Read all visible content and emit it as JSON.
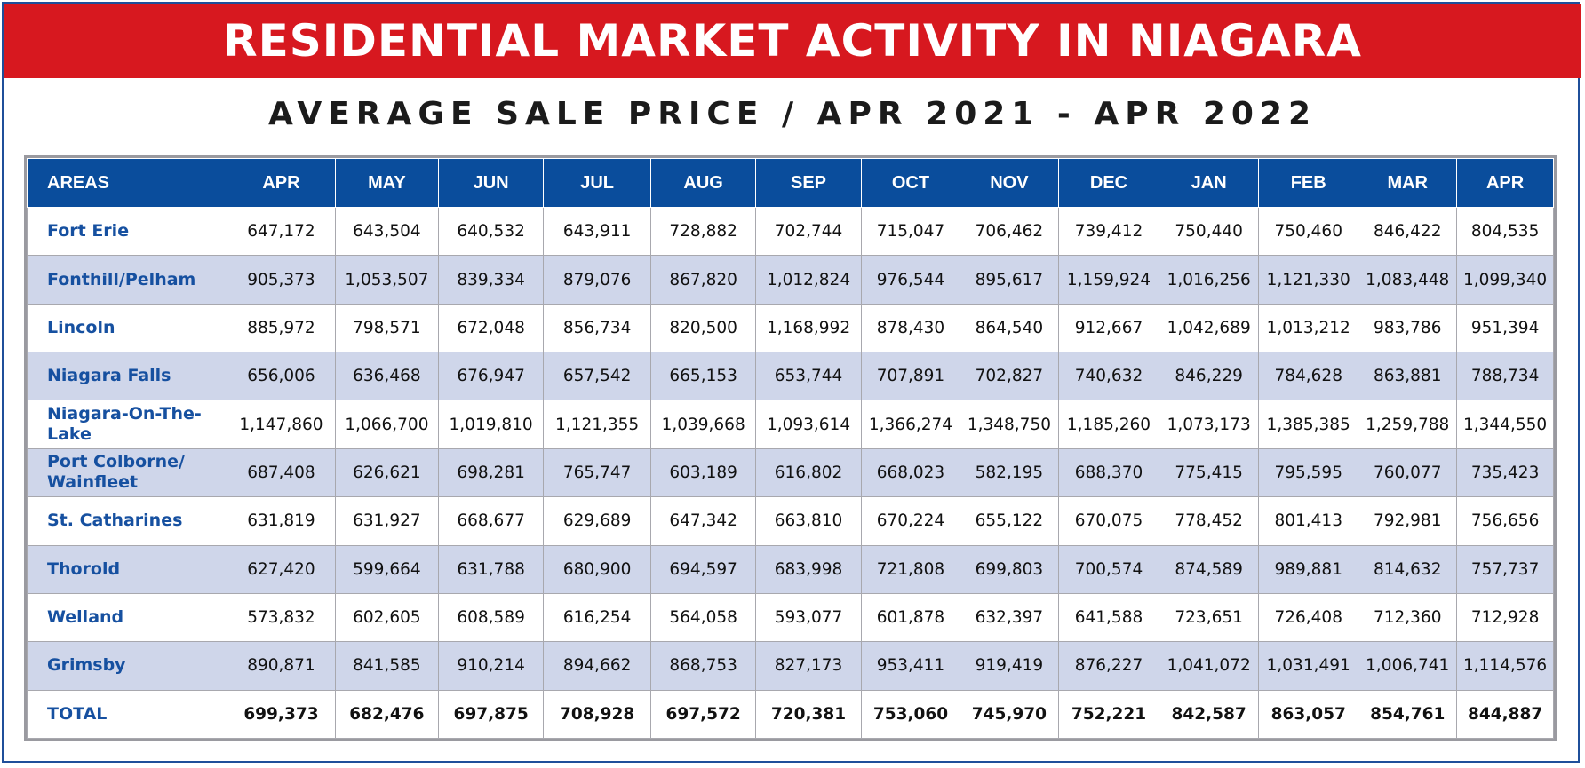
{
  "banner": {
    "title": "RESIDENTIAL MARKET ACTIVITY IN NIAGARA"
  },
  "subtitle": "AVERAGE SALE PRICE / APR 2021 - APR 2022",
  "colors": {
    "banner_red": "#d7181f",
    "header_blue": "#0a4d9c",
    "area_text_blue": "#1650a0",
    "alt_row": "#cfd6ea"
  },
  "chart_data": {
    "type": "table",
    "title": "RESIDENTIAL MARKET ACTIVITY IN NIAGARA",
    "subtitle": "AVERAGE SALE PRICE / APR 2021 - APR 2022",
    "columns": [
      "AREAS",
      "APR",
      "MAY",
      "JUN",
      "JUL",
      "AUG",
      "SEP",
      "OCT",
      "NOV",
      "DEC",
      "JAN",
      "FEB",
      "MAR",
      "APR"
    ],
    "rows": [
      {
        "area": "Fort Erie",
        "values": [
          "647,172",
          "643,504",
          "640,532",
          "643,911",
          "728,882",
          "702,744",
          "715,047",
          "706,462",
          "739,412",
          "750,440",
          "750,460",
          "846,422",
          "804,535"
        ]
      },
      {
        "area": "Fonthill/Pelham",
        "values": [
          "905,373",
          "1,053,507",
          "839,334",
          "879,076",
          "867,820",
          "1,012,824",
          "976,544",
          "895,617",
          "1,159,924",
          "1,016,256",
          "1,121,330",
          "1,083,448",
          "1,099,340"
        ]
      },
      {
        "area": "Lincoln",
        "values": [
          "885,972",
          "798,571",
          "672,048",
          "856,734",
          "820,500",
          "1,168,992",
          "878,430",
          "864,540",
          "912,667",
          "1,042,689",
          "1,013,212",
          "983,786",
          "951,394"
        ]
      },
      {
        "area": "Niagara Falls",
        "values": [
          "656,006",
          "636,468",
          "676,947",
          "657,542",
          "665,153",
          "653,744",
          "707,891",
          "702,827",
          "740,632",
          "846,229",
          "784,628",
          "863,881",
          "788,734"
        ]
      },
      {
        "area": "Niagara-On-The-Lake",
        "values": [
          "1,147,860",
          "1,066,700",
          "1,019,810",
          "1,121,355",
          "1,039,668",
          "1,093,614",
          "1,366,274",
          "1,348,750",
          "1,185,260",
          "1,073,173",
          "1,385,385",
          "1,259,788",
          "1,344,550"
        ]
      },
      {
        "area": "Port Colborne/ Wainfleet",
        "values": [
          "687,408",
          "626,621",
          "698,281",
          "765,747",
          "603,189",
          "616,802",
          "668,023",
          "582,195",
          "688,370",
          "775,415",
          "795,595",
          "760,077",
          "735,423"
        ]
      },
      {
        "area": "St. Catharines",
        "values": [
          "631,819",
          "631,927",
          "668,677",
          "629,689",
          "647,342",
          "663,810",
          "670,224",
          "655,122",
          "670,075",
          "778,452",
          "801,413",
          "792,981",
          "756,656"
        ]
      },
      {
        "area": "Thorold",
        "values": [
          "627,420",
          "599,664",
          "631,788",
          "680,900",
          "694,597",
          "683,998",
          "721,808",
          "699,803",
          "700,574",
          "874,589",
          "989,881",
          "814,632",
          "757,737"
        ]
      },
      {
        "area": "Welland",
        "values": [
          "573,832",
          "602,605",
          "608,589",
          "616,254",
          "564,058",
          "593,077",
          "601,878",
          "632,397",
          "641,588",
          "723,651",
          "726,408",
          "712,360",
          "712,928"
        ]
      },
      {
        "area": "Grimsby",
        "values": [
          "890,871",
          "841,585",
          "910,214",
          "894,662",
          "868,753",
          "827,173",
          "953,411",
          "919,419",
          "876,227",
          "1,041,072",
          "1,031,491",
          "1,006,741",
          "1,114,576"
        ]
      },
      {
        "area": "TOTAL",
        "values": [
          "699,373",
          "682,476",
          "697,875",
          "708,928",
          "697,572",
          "720,381",
          "753,060",
          "745,970",
          "752,221",
          "842,587",
          "863,057",
          "854,761",
          "844,887"
        ],
        "bold": true
      }
    ]
  }
}
